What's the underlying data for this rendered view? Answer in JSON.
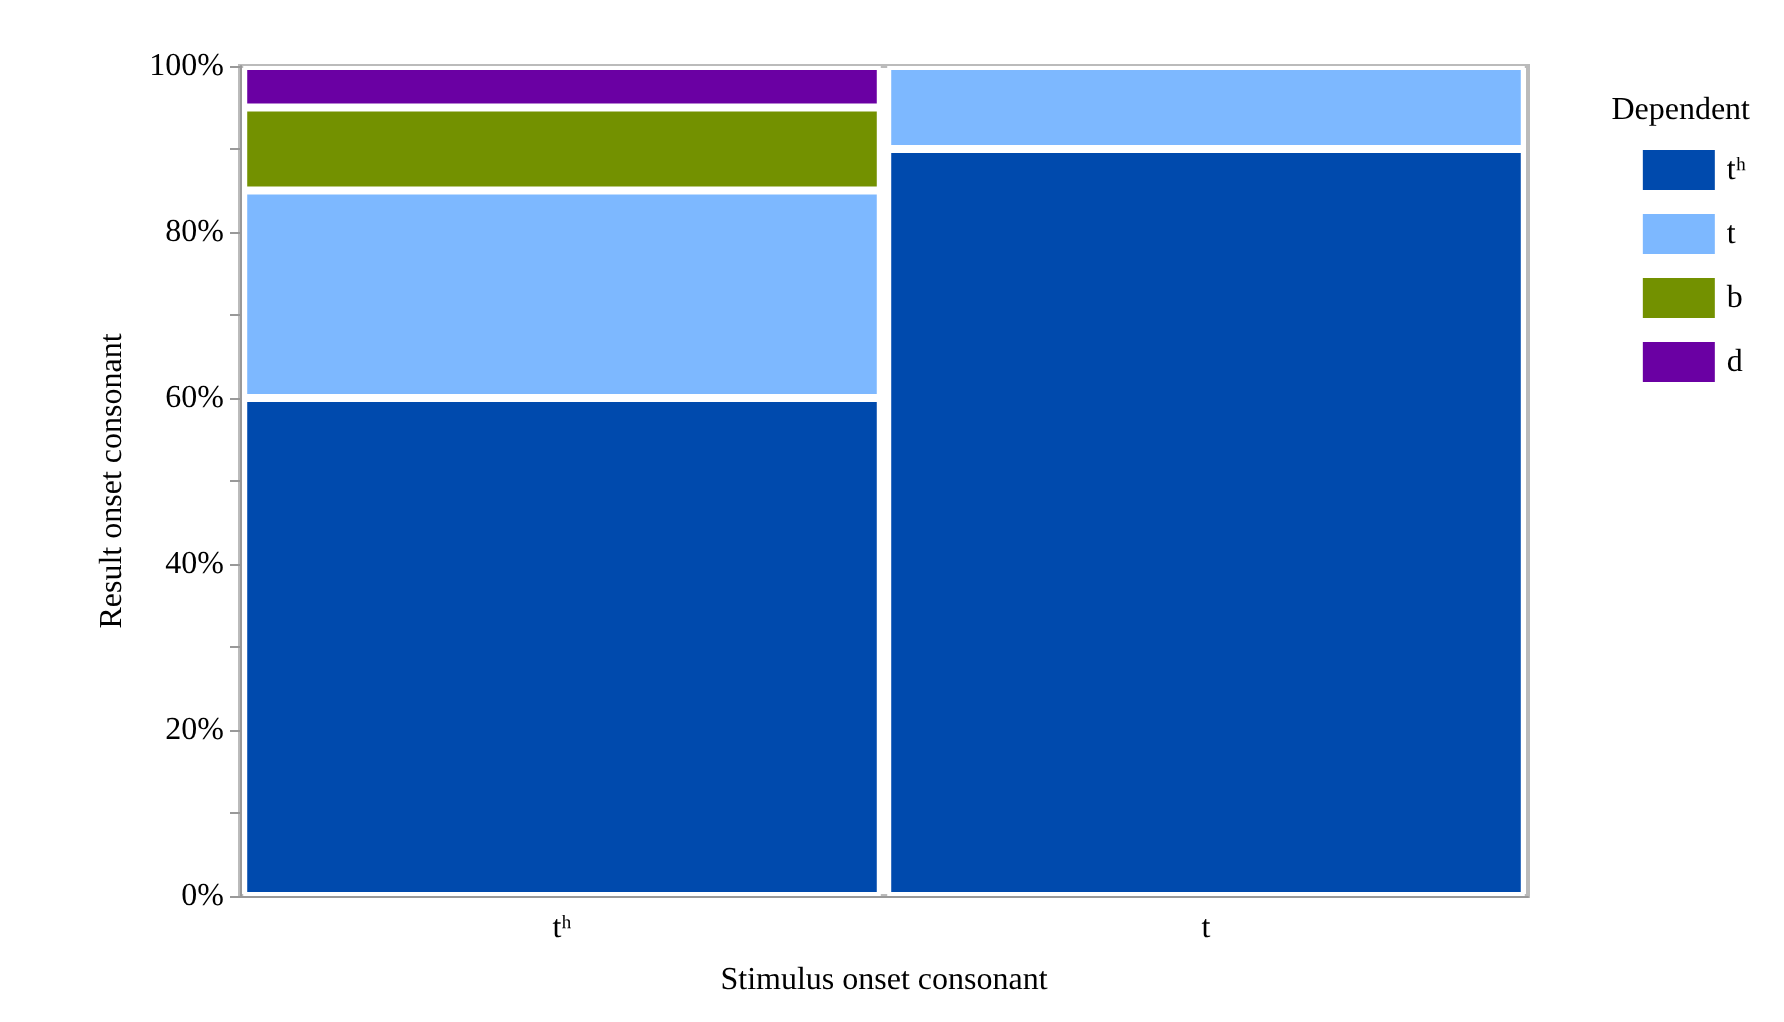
{
  "chart_data": {
    "type": "bar",
    "stacked": true,
    "xlabel": "Stimulus onset consonant",
    "ylabel": "Result onset consonant",
    "legend_title": "Dependent",
    "categories": [
      "tʰ",
      "t"
    ],
    "series": [
      {
        "name": "tʰ",
        "color": "#004aad",
        "values": [
          60,
          90
        ]
      },
      {
        "name": "t",
        "color": "#7db8ff",
        "values": [
          25,
          10
        ]
      },
      {
        "name": "b",
        "color": "#739100",
        "values": [
          10,
          0
        ]
      },
      {
        "name": "d",
        "color": "#6a00a3",
        "values": [
          5,
          0
        ]
      }
    ],
    "ylim": [
      0,
      100
    ],
    "yticks": [
      {
        "value": 0,
        "label": "0%"
      },
      {
        "value": 10,
        "label": null
      },
      {
        "value": 20,
        "label": "20%"
      },
      {
        "value": 30,
        "label": null
      },
      {
        "value": 40,
        "label": "40%"
      },
      {
        "value": 50,
        "label": null
      },
      {
        "value": 60,
        "label": "60%"
      },
      {
        "value": 70,
        "label": null
      },
      {
        "value": 80,
        "label": "80%"
      },
      {
        "value": 90,
        "label": null
      },
      {
        "value": 100,
        "label": "100%"
      }
    ],
    "grid": false,
    "legend": "top right"
  }
}
